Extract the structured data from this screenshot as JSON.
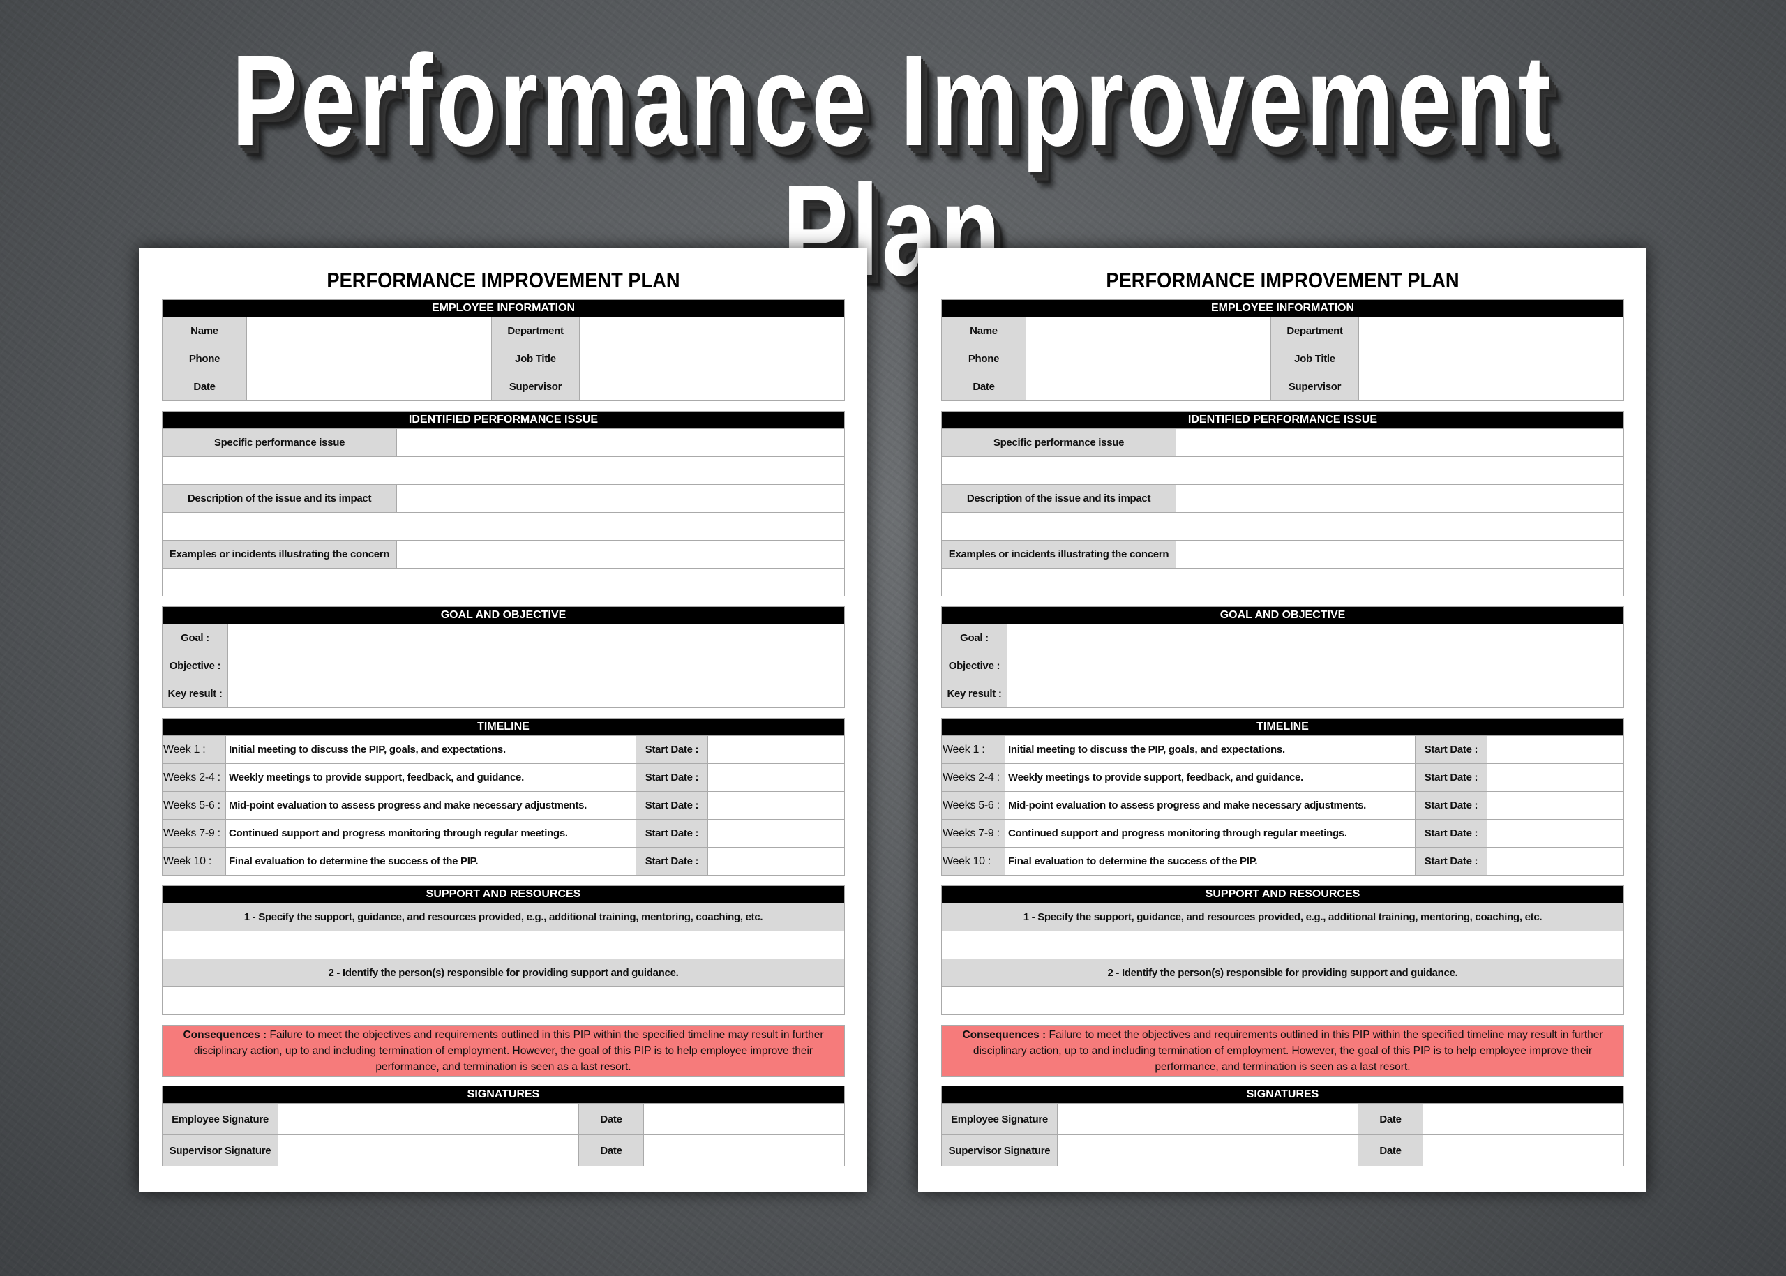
{
  "banner_title": "Performance Improvement Plan",
  "document": {
    "title": "PERFORMANCE IMPROVEMENT PLAN",
    "employee_info": {
      "header": "EMPLOYEE INFORMATION",
      "rows": [
        {
          "left": "Name",
          "right": "Department"
        },
        {
          "left": "Phone",
          "right": "Job Title"
        },
        {
          "left": "Date",
          "right": "Supervisor"
        }
      ]
    },
    "issue": {
      "header": "IDENTIFIED PERFORMANCE ISSUE",
      "labels": [
        "Specific performance issue",
        "Description of the issue and its impact",
        "Examples or incidents illustrating the concern"
      ]
    },
    "goal": {
      "header": "GOAL AND OBJECTIVE",
      "labels": [
        "Goal :",
        "Objective :",
        "Key result :"
      ]
    },
    "timeline": {
      "header": "TIMELINE",
      "start_label": "Start Date :",
      "rows": [
        {
          "week": "Week 1 :",
          "desc": "Initial meeting to discuss the PIP, goals, and expectations."
        },
        {
          "week": "Weeks 2-4 :",
          "desc": "Weekly meetings to provide support, feedback, and guidance."
        },
        {
          "week": "Weeks 5-6 :",
          "desc": "Mid-point evaluation to assess progress and make necessary adjustments."
        },
        {
          "week": "Weeks 7-9 :",
          "desc": "Continued support and progress monitoring through regular meetings."
        },
        {
          "week": "Week 10 :",
          "desc": "Final evaluation to determine the success of the PIP."
        }
      ]
    },
    "support": {
      "header": "SUPPORT AND RESOURCES",
      "items": [
        "1 - Specify the support, guidance, and resources provided, e.g., additional training, mentoring, coaching, etc.",
        "2 - Identify the person(s) responsible for providing support and guidance."
      ]
    },
    "consequences": {
      "label": "Consequences :",
      "text": "Failure to meet the objectives and requirements outlined in this PIP within the specified timeline may result in further disciplinary action, up to and including termination of employment. However, the goal of this PIP is to help employee improve their performance, and termination is seen as a last resort."
    },
    "signatures": {
      "header": "SIGNATURES",
      "rows": [
        {
          "label": "Employee Signature",
          "date": "Date"
        },
        {
          "label": "Supervisor Signature",
          "date": "Date"
        }
      ]
    }
  },
  "colors": {
    "header_bg": "#000000",
    "label_bg": "#d9d9d9",
    "consequences_bg": "#f67b7b"
  }
}
